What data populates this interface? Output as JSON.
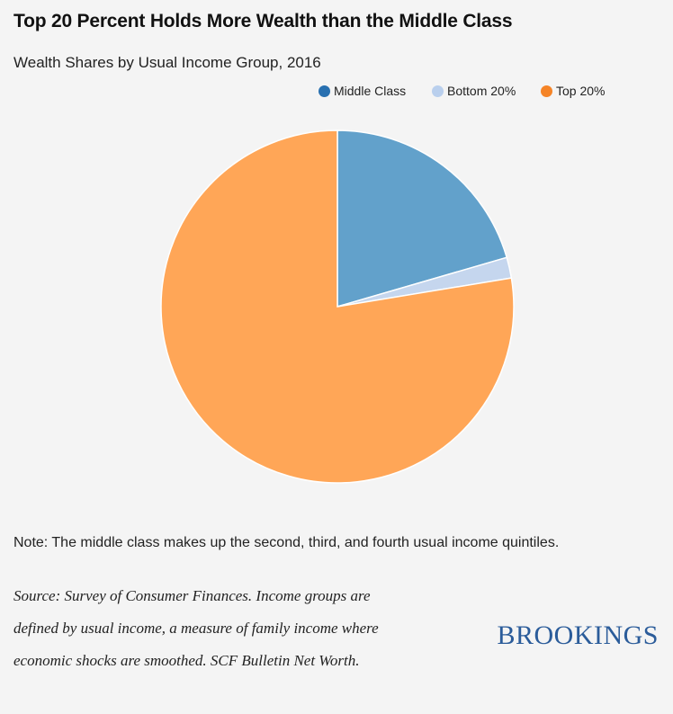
{
  "title": "Top 20 Percent Holds More Wealth than the Middle Class",
  "subtitle": "Wealth Shares by Usual Income Group, 2016",
  "note": "Note: The middle class makes up the second, third, and fourth usual income quintiles.",
  "source": "Source: Survey of Consumer Finances. Income groups are defined by usual income, a measure of family income where economic shocks are smoothed. SCF Bulletin Net Worth.",
  "logo": "BROOKINGS",
  "legend": [
    {
      "label": "Middle Class",
      "color": "#2870b0"
    },
    {
      "label": "Bottom 20%",
      "color": "#b9cfed"
    },
    {
      "label": "Top 20%",
      "color": "#f58427"
    }
  ],
  "chart_data": {
    "type": "pie",
    "title": "Top 20 Percent Holds More Wealth than the Middle Class",
    "subtitle": "Wealth Shares by Usual Income Group, 2016",
    "categories": [
      "Middle Class",
      "Bottom 20%",
      "Top 20%"
    ],
    "values": [
      20.5,
      1.9,
      77.6
    ],
    "unit": "%",
    "slice_colors": [
      "#62a1cb",
      "#c5d6ee",
      "#ffa657"
    ],
    "start_angle": "12 o'clock, clockwise",
    "legend_position": "top-right"
  }
}
